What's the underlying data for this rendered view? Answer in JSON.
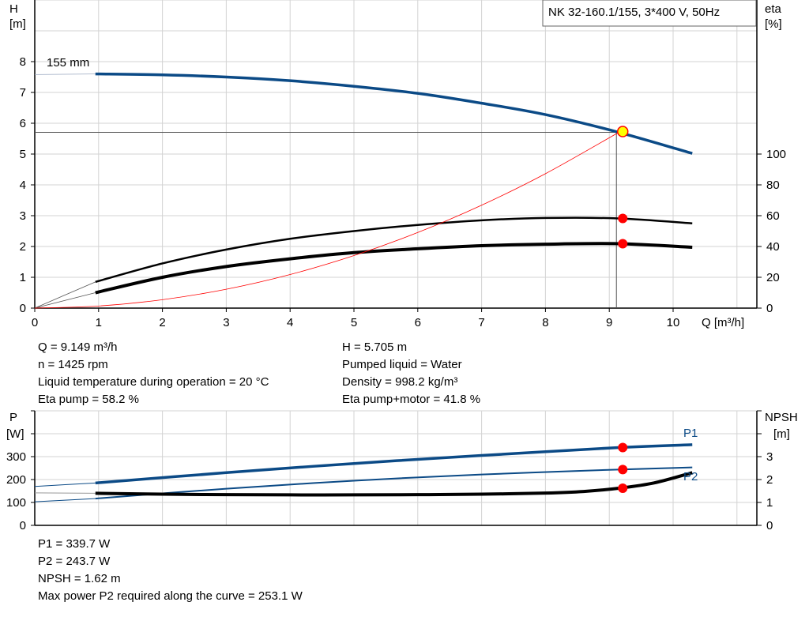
{
  "chart_data": [
    {
      "type": "line",
      "title": "NK 32-160.1/155, 3*400 V, 50Hz",
      "xlabel": "Q [m³/h]",
      "ylabel_left": {
        "name": "H",
        "unit": "[m]"
      },
      "ylabel_right": {
        "name": "eta",
        "unit": "[%]"
      },
      "xlim": [
        0,
        11.3
      ],
      "ylim_left": [
        0,
        10
      ],
      "ylim_right": [
        0,
        200
      ],
      "x_ticks": [
        "0",
        "1",
        "2",
        "3",
        "4",
        "5",
        "6",
        "7",
        "8",
        "9",
        "10"
      ],
      "y_ticks_left": [
        "0",
        "1",
        "2",
        "3",
        "4",
        "5",
        "6",
        "7",
        "8"
      ],
      "y_ticks_right": [
        "0",
        "20",
        "40",
        "60",
        "80",
        "100"
      ],
      "grid": true,
      "curve_label": "155 mm",
      "series": [
        {
          "key": "H",
          "axis": "left",
          "color": "#0b4a86",
          "x": [
            0.95,
            2,
            3,
            4,
            5,
            6,
            7,
            8,
            9.149,
            10.3
          ],
          "y": [
            7.6,
            7.57,
            7.5,
            7.38,
            7.2,
            6.97,
            6.65,
            6.28,
            5.705,
            5.02
          ],
          "ext_x": [
            0,
            0.95
          ],
          "ext_y": [
            7.58,
            7.6
          ]
        },
        {
          "key": "eta_pump",
          "axis": "right",
          "color": "#000000",
          "x": [
            0.95,
            2,
            3,
            4,
            5,
            6,
            7,
            8,
            9.149,
            10.3
          ],
          "y": [
            17,
            29,
            38,
            45,
            50,
            54,
            57,
            58.5,
            58.2,
            55
          ],
          "ext_x": [
            0,
            0.95
          ],
          "ext_y": [
            0,
            17
          ]
        },
        {
          "key": "eta_pump_motor",
          "axis": "right",
          "color": "#000000",
          "x": [
            0.95,
            2,
            3,
            4,
            5,
            6,
            7,
            8,
            9.149,
            10.3
          ],
          "y": [
            10,
            20,
            27,
            32,
            36,
            38.5,
            40.5,
            41.5,
            41.8,
            39.5
          ],
          "ext_x": [
            0,
            0.95
          ],
          "ext_y": [
            0,
            10
          ]
        },
        {
          "key": "system_curve",
          "axis": "left",
          "color": "#ff0000",
          "x": [
            0,
            1,
            2,
            3,
            4,
            5,
            6,
            7,
            8,
            9.149
          ],
          "y": [
            0,
            0.068,
            0.273,
            0.613,
            1.09,
            1.704,
            2.454,
            3.34,
            4.362,
            5.705
          ]
        }
      ],
      "duty_point": {
        "Q": 9.149,
        "H": 5.705,
        "eta_pump": 58.2,
        "eta_pump_motor": 41.8
      }
    },
    {
      "type": "line",
      "xlim": [
        0,
        11.3
      ],
      "ylabel_left": {
        "name": "P",
        "unit": "[W]"
      },
      "ylabel_right": {
        "name": "NPSH",
        "unit": "[m]"
      },
      "ylim_left": [
        0,
        500
      ],
      "ylim_right": [
        0,
        5
      ],
      "y_ticks_left": [
        "0",
        "100",
        "200",
        "300"
      ],
      "y_ticks_right": [
        "0",
        "1",
        "2",
        "3"
      ],
      "grid": true,
      "series": [
        {
          "key": "P1",
          "name": "P1",
          "axis": "left",
          "color": "#0b4a86",
          "x": [
            0.95,
            3,
            5,
            7,
            9.149,
            10.3
          ],
          "y": [
            185,
            230,
            270,
            305,
            339.7,
            352
          ],
          "ext_x": [
            0,
            0.95
          ],
          "ext_y": [
            170,
            185
          ]
        },
        {
          "key": "P2",
          "name": "P2",
          "axis": "left",
          "color": "#0b4a86",
          "x": [
            0.95,
            3,
            5,
            7,
            9.149,
            10.3
          ],
          "y": [
            117,
            160,
            195,
            222,
            243.7,
            253
          ],
          "ext_x": [
            0,
            0.95
          ],
          "ext_y": [
            103,
            117
          ]
        },
        {
          "key": "NPSH",
          "axis": "right",
          "color": "#000000",
          "x": [
            0.95,
            2,
            3,
            4,
            5,
            6,
            7,
            8,
            8.6,
            9.149,
            9.7,
            10.3
          ],
          "y": [
            1.4,
            1.36,
            1.34,
            1.33,
            1.33,
            1.34,
            1.36,
            1.41,
            1.48,
            1.62,
            1.85,
            2.3
          ],
          "ext_x": [
            0,
            0.95
          ],
          "ext_y": [
            1.42,
            1.4
          ]
        }
      ],
      "duty_point": {
        "Q": 9.149,
        "P1": 339.7,
        "P2": 243.7,
        "NPSH": 1.62
      }
    }
  ],
  "info": {
    "left": [
      "Q = 9.149 m³/h",
      "n = 1425 rpm",
      "Liquid temperature during operation = 20 °C",
      "Eta pump = 58.2 %"
    ],
    "right": [
      "H = 5.705 m",
      "Pumped liquid = Water",
      "Density = 998.2 kg/m³",
      "Eta pump+motor = 41.8 %"
    ],
    "bottom": [
      "P1 = 339.7 W",
      "P2 = 243.7 W",
      "NPSH = 1.62 m",
      "Max power P2 required along the curve = 253.1 W"
    ]
  },
  "colors": {
    "curve_blue": "#0b4a86",
    "duty_marker": "#ff0000",
    "duty_point_fill": "#ffff00",
    "grid": "#d3d3d3"
  }
}
